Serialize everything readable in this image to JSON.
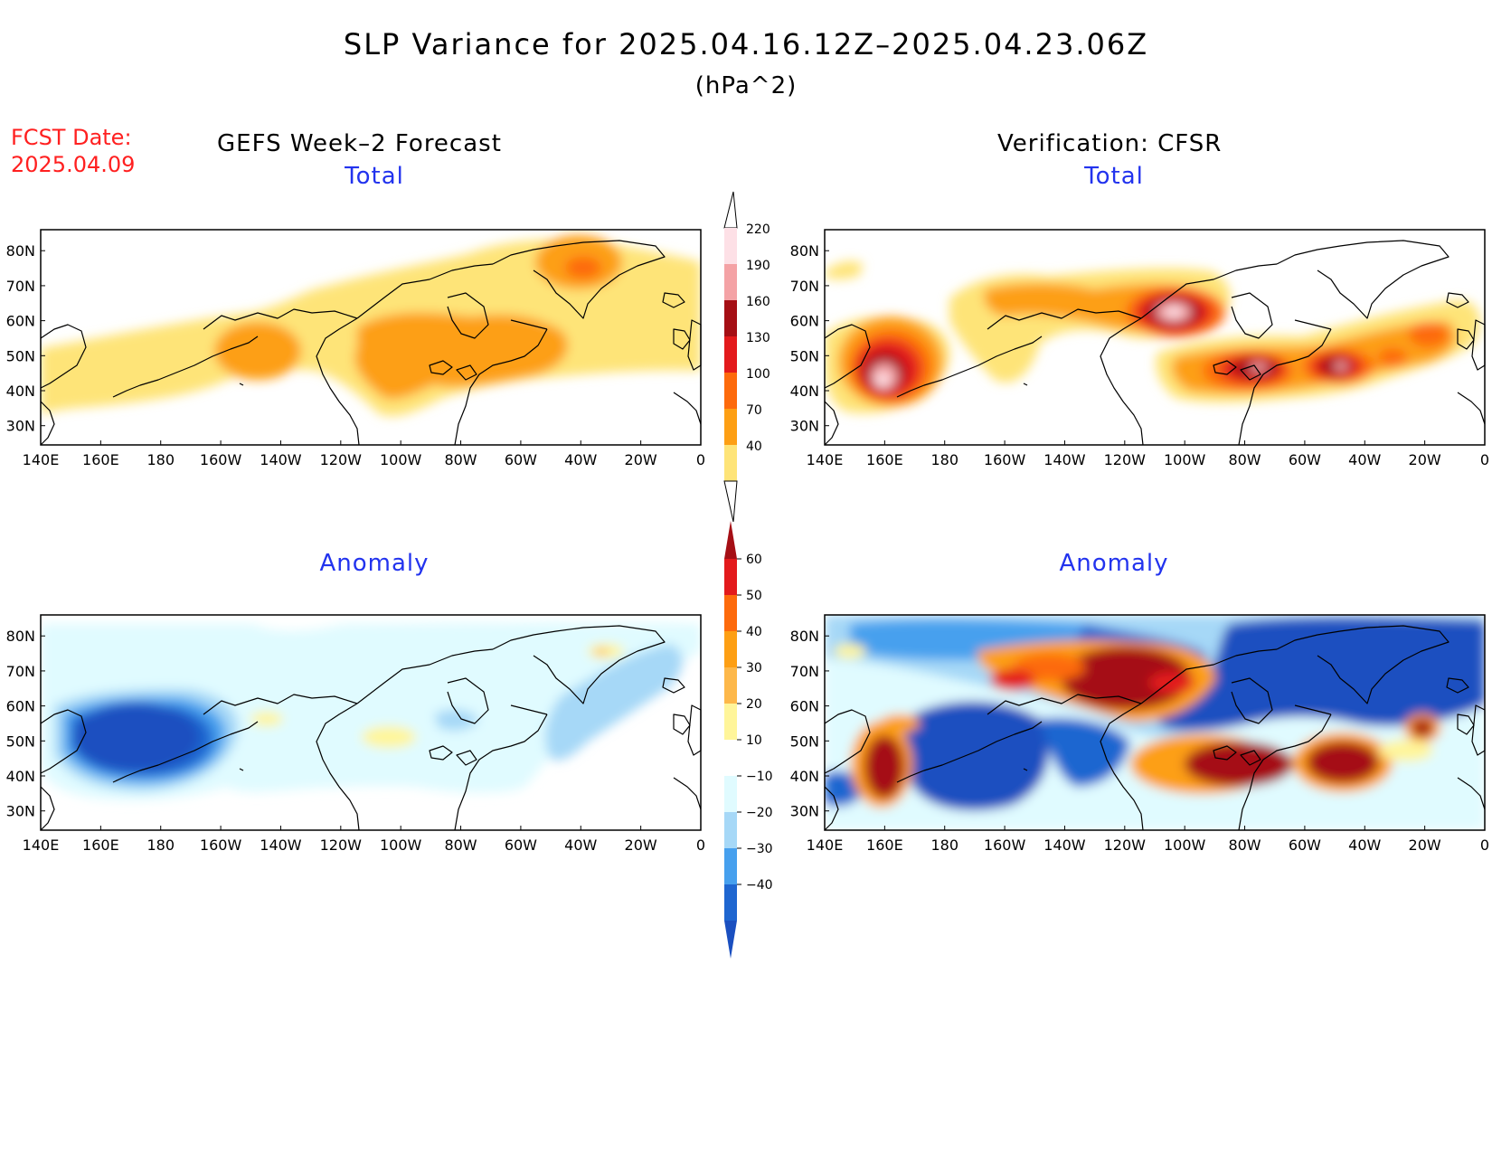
{
  "title": "SLP Variance for 2025.04.16.12Z–2025.04.23.06Z",
  "units": "(hPa^2)",
  "forecast_date_label": "FCST Date:",
  "forecast_date_value": "2025.04.09",
  "left_column_title": "GEFS Week–2 Forecast",
  "right_column_title": "Verification: CFSR",
  "panels": [
    {
      "id": "gefs-total",
      "title": "Total"
    },
    {
      "id": "cfsr-total",
      "title": "Total"
    },
    {
      "id": "gefs-anomaly",
      "title": "Anomaly"
    },
    {
      "id": "cfsr-anomaly",
      "title": "Anomaly"
    }
  ],
  "map_axes": {
    "lon_labels": [
      "140E",
      "160E",
      "180",
      "160W",
      "140W",
      "120W",
      "100W",
      "80W",
      "60W",
      "40W",
      "20W",
      "0"
    ],
    "lat_labels": [
      "80N",
      "70N",
      "60N",
      "50N",
      "40N",
      "30N"
    ]
  },
  "total_colorbar": {
    "levels": [
      "220",
      "190",
      "160",
      "130",
      "100",
      "70",
      "40"
    ],
    "colors": [
      "#fde0e6",
      "#f4a2a5",
      "#a50f15",
      "#e31a1c",
      "#fd6a0c",
      "#fd9f14",
      "#fee478"
    ]
  },
  "anomaly_colorbar": {
    "levels": [
      "60",
      "50",
      "40",
      "30",
      "20",
      "10",
      "−10",
      "−20",
      "−30",
      "−40"
    ],
    "colors": [
      "#a50f15",
      "#e31a1c",
      "#fd6a0c",
      "#fd9f14",
      "#fdb84a",
      "#fff59a",
      "#ffffff",
      "#e0fbff",
      "#a6d8f7",
      "#46a0ee",
      "#1f66d0",
      "#1a4fc0"
    ]
  },
  "chart_data": [
    {
      "type": "heatmap",
      "title": "Total",
      "panel": "GEFS Week–2 Forecast",
      "unit": "hPa^2",
      "contour_levels": [
        40,
        70,
        100,
        130,
        160,
        190,
        220
      ],
      "features": [
        {
          "region": "North Pacific ~150W, 47N",
          "value_range": [
            70,
            100
          ]
        },
        {
          "region": "Central North America ~95W, 50N",
          "value_range": [
            70,
            100
          ]
        },
        {
          "region": "Greenland ~40W, 73N",
          "value_range": [
            100,
            130
          ]
        },
        {
          "region": "Broad mid-latitude belt",
          "value_range": [
            40,
            70
          ]
        }
      ]
    },
    {
      "type": "heatmap",
      "title": "Total",
      "panel": "Verification: CFSR",
      "unit": "hPa^2",
      "contour_levels": [
        40,
        70,
        100,
        130,
        160,
        190,
        220
      ],
      "features": [
        {
          "region": "Northwest Pacific ~160E, 43N",
          "value_range": [
            190,
            220
          ]
        },
        {
          "region": "Canadian Arctic ~110W, 63N",
          "value_range": [
            190,
            220
          ]
        },
        {
          "region": "Eastern North America ~80W, 45N",
          "value_range": [
            160,
            190
          ]
        },
        {
          "region": "North Atlantic ~50W, 47N",
          "value_range": [
            160,
            190
          ]
        },
        {
          "region": "Northeast Atlantic ~20W, 57N",
          "value_range": [
            100,
            130
          ]
        }
      ]
    },
    {
      "type": "heatmap",
      "title": "Anomaly",
      "panel": "GEFS Week–2 Forecast",
      "unit": "hPa^2",
      "contour_levels": [
        -40,
        -30,
        -20,
        -10,
        10,
        20,
        30,
        40,
        50,
        60
      ],
      "features": [
        {
          "region": "North Pacific ~175E, 48N",
          "value_range": [
            -40,
            -30
          ]
        },
        {
          "region": "North Atlantic ~40W, 50N",
          "value_range": [
            -20,
            -10
          ]
        },
        {
          "region": "Central Canada ~100W, 50N",
          "value_range": [
            10,
            20
          ]
        },
        {
          "region": "Greenland ~30W, 75N",
          "value_range": [
            20,
            30
          ]
        }
      ]
    },
    {
      "type": "heatmap",
      "title": "Anomaly",
      "panel": "Verification: CFSR",
      "unit": "hPa^2",
      "contour_levels": [
        -40,
        -30,
        -20,
        -10,
        10,
        20,
        30,
        40,
        50,
        60
      ],
      "features": [
        {
          "region": "Northwest Pacific ~160E, 43N",
          "value_range": [
            50,
            60
          ]
        },
        {
          "region": "Canadian Arctic ~110W, 65N",
          "value_range": [
            50,
            60
          ]
        },
        {
          "region": "Eastern North America ~80W, 45N",
          "value_range": [
            50,
            60
          ]
        },
        {
          "region": "North Atlantic ~50W, 45N",
          "value_range": [
            50,
            60
          ]
        },
        {
          "region": "Central North Pacific ~170W, 45N",
          "value_range": [
            -40,
            -30
          ]
        },
        {
          "region": "Greenland / Arctic ~40W, 75N",
          "value_range": [
            -40,
            -30
          ]
        }
      ]
    }
  ]
}
